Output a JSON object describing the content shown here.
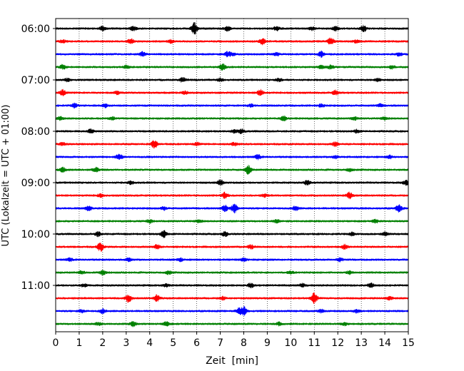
{
  "chart_data": {
    "type": "line",
    "subtype": "helicorder",
    "title": "",
    "xlabel": "Zeit  [min]",
    "ylabel": "UTC (Lokalzeit = UTC + 01:00)",
    "xlim": [
      0,
      15
    ],
    "x_ticks": [
      0,
      1,
      2,
      3,
      4,
      5,
      6,
      7,
      8,
      9,
      10,
      11,
      12,
      13,
      14,
      15
    ],
    "grid": {
      "x": true,
      "style": "dotted"
    },
    "traces_per_hour": 4,
    "trace_interval_min": 15,
    "hour_labels": [
      "06:00",
      "07:00",
      "08:00",
      "09:00",
      "10:00",
      "11:00"
    ],
    "trace_colors": [
      "#000000",
      "#ff0000",
      "#0000ff",
      "#008000"
    ],
    "traces": [
      {
        "label": "06:00",
        "color": "#000000",
        "bursts": [
          [
            2.0,
            3
          ],
          [
            3.3,
            3
          ],
          [
            5.9,
            8
          ],
          [
            7.3,
            3
          ],
          [
            9.4,
            3
          ],
          [
            10.9,
            2
          ],
          [
            11.9,
            3
          ],
          [
            13.1,
            4
          ]
        ]
      },
      {
        "label": "",
        "color": "#ff0000",
        "bursts": [
          [
            0.3,
            2
          ],
          [
            3.2,
            3
          ],
          [
            4.9,
            2
          ],
          [
            8.8,
            4
          ],
          [
            11.7,
            5
          ],
          [
            12.8,
            2
          ]
        ]
      },
      {
        "label": "",
        "color": "#0000ff",
        "bursts": [
          [
            3.7,
            3
          ],
          [
            7.3,
            3
          ],
          [
            7.5,
            2
          ],
          [
            9.4,
            2
          ],
          [
            11.3,
            4
          ],
          [
            14.6,
            2
          ]
        ]
      },
      {
        "label": "",
        "color": "#008000",
        "bursts": [
          [
            0.3,
            3
          ],
          [
            3.0,
            2
          ],
          [
            7.1,
            4
          ],
          [
            11.3,
            2
          ],
          [
            11.7,
            3
          ],
          [
            14.3,
            2
          ]
        ]
      },
      {
        "label": "07:00",
        "color": "#000000",
        "bursts": [
          [
            0.5,
            2
          ],
          [
            5.4,
            3
          ],
          [
            7.0,
            2
          ],
          [
            9.5,
            2
          ],
          [
            13.7,
            2
          ]
        ]
      },
      {
        "label": "",
        "color": "#ff0000",
        "bursts": [
          [
            0.3,
            4
          ],
          [
            2.6,
            2
          ],
          [
            5.5,
            2
          ],
          [
            8.7,
            4
          ],
          [
            11.9,
            3
          ]
        ]
      },
      {
        "label": "",
        "color": "#0000ff",
        "bursts": [
          [
            0.8,
            3
          ],
          [
            2.1,
            2
          ],
          [
            8.3,
            2
          ],
          [
            11.3,
            2
          ],
          [
            13.8,
            2
          ]
        ]
      },
      {
        "label": "",
        "color": "#008000",
        "bursts": [
          [
            0.2,
            2
          ],
          [
            2.4,
            2
          ],
          [
            9.7,
            3
          ],
          [
            12.7,
            2
          ],
          [
            14.0,
            2
          ]
        ]
      },
      {
        "label": "08:00",
        "color": "#000000",
        "bursts": [
          [
            1.5,
            3
          ],
          [
            7.6,
            2
          ],
          [
            7.9,
            3
          ],
          [
            12.8,
            2
          ]
        ]
      },
      {
        "label": "",
        "color": "#ff0000",
        "bursts": [
          [
            0.3,
            2
          ],
          [
            4.2,
            5
          ],
          [
            6.0,
            2
          ],
          [
            7.6,
            2
          ],
          [
            11.9,
            3
          ]
        ]
      },
      {
        "label": "",
        "color": "#0000ff",
        "bursts": [
          [
            2.7,
            4
          ],
          [
            8.6,
            3
          ],
          [
            11.9,
            2
          ],
          [
            14.2,
            2
          ]
        ]
      },
      {
        "label": "",
        "color": "#008000",
        "bursts": [
          [
            0.3,
            3
          ],
          [
            1.7,
            3
          ],
          [
            8.2,
            6
          ],
          [
            12.5,
            2
          ]
        ]
      },
      {
        "label": "09:00",
        "color": "#000000",
        "bursts": [
          [
            3.2,
            2
          ],
          [
            7.0,
            4
          ],
          [
            10.7,
            3
          ],
          [
            14.9,
            3
          ]
        ]
      },
      {
        "label": "",
        "color": "#ff0000",
        "bursts": [
          [
            1.9,
            2
          ],
          [
            7.2,
            4
          ],
          [
            8.9,
            2
          ],
          [
            12.5,
            4
          ]
        ]
      },
      {
        "label": "",
        "color": "#0000ff",
        "bursts": [
          [
            1.4,
            3
          ],
          [
            4.6,
            2
          ],
          [
            7.2,
            4
          ],
          [
            7.6,
            6
          ],
          [
            10.2,
            3
          ],
          [
            14.6,
            5
          ]
        ]
      },
      {
        "label": "",
        "color": "#008000",
        "bursts": [
          [
            4.0,
            2
          ],
          [
            6.1,
            2
          ],
          [
            9.4,
            2
          ],
          [
            13.6,
            2
          ]
        ]
      },
      {
        "label": "10:00",
        "color": "#000000",
        "bursts": [
          [
            1.8,
            3
          ],
          [
            4.6,
            5
          ],
          [
            7.2,
            3
          ],
          [
            12.6,
            2
          ],
          [
            14.0,
            3
          ]
        ]
      },
      {
        "label": "",
        "color": "#ff0000",
        "bursts": [
          [
            1.9,
            6
          ],
          [
            4.3,
            3
          ],
          [
            8.3,
            3
          ],
          [
            12.3,
            3
          ]
        ]
      },
      {
        "label": "",
        "color": "#0000ff",
        "bursts": [
          [
            0.6,
            2
          ],
          [
            3.1,
            2
          ],
          [
            5.3,
            2
          ],
          [
            8.0,
            2
          ],
          [
            12.1,
            2
          ]
        ]
      },
      {
        "label": "",
        "color": "#008000",
        "bursts": [
          [
            1.1,
            2
          ],
          [
            2.0,
            3
          ],
          [
            4.8,
            2
          ],
          [
            10.0,
            2
          ],
          [
            12.5,
            2
          ]
        ]
      },
      {
        "label": "11:00",
        "color": "#000000",
        "bursts": [
          [
            1.2,
            2
          ],
          [
            4.7,
            2
          ],
          [
            8.3,
            3
          ],
          [
            10.5,
            2
          ],
          [
            13.4,
            3
          ]
        ]
      },
      {
        "label": "",
        "color": "#ff0000",
        "bursts": [
          [
            3.1,
            5
          ],
          [
            4.3,
            4
          ],
          [
            7.1,
            2
          ],
          [
            11.0,
            7
          ],
          [
            14.2,
            2
          ]
        ]
      },
      {
        "label": "",
        "color": "#0000ff",
        "bursts": [
          [
            1.1,
            2
          ],
          [
            2.0,
            3
          ],
          [
            7.8,
            4
          ],
          [
            8.0,
            6
          ],
          [
            11.3,
            2
          ],
          [
            12.8,
            2
          ]
        ]
      },
      {
        "label": "",
        "color": "#008000",
        "bursts": [
          [
            1.8,
            2
          ],
          [
            3.3,
            3
          ],
          [
            4.7,
            3
          ],
          [
            9.5,
            2
          ],
          [
            12.3,
            2
          ]
        ]
      }
    ]
  }
}
